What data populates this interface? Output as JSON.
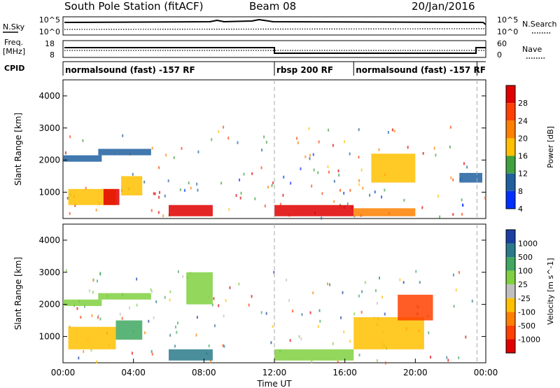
{
  "header": {
    "station_title": "South Pole Station (fitACF)",
    "beam": "Beam 08",
    "date": "20/Jan/2016"
  },
  "strips": {
    "nsky_label": "N.Sky",
    "nsky_ticks": [
      "10^5",
      "10^0"
    ],
    "nsearch_label": "N.Search",
    "nsearch_ticks": [
      "10^5",
      "10^0"
    ],
    "freq_label_1": "Freq.",
    "freq_label_2": "[MHz]",
    "freq_ticks": [
      "18",
      "8"
    ],
    "nave_label": "Nave",
    "nave_ticks": [
      "60",
      "0"
    ],
    "cpid_label": "CPID",
    "cpid_segments": [
      {
        "label": "normalsound (fast) -157 RF",
        "start_h": 0,
        "end_h": 12
      },
      {
        "label": "rbsp 200 RF",
        "start_h": 12,
        "end_h": 16.5
      },
      {
        "label": "normalsound (fast) -157 RF",
        "start_h": 16.5,
        "end_h": 23.5
      }
    ]
  },
  "chart_data": [
    {
      "type": "heatmap",
      "panel": "power",
      "ylabel": "Slant Range [km]",
      "ylim": [
        180,
        4500
      ],
      "xlim_hours": [
        0,
        24
      ],
      "yticks": [
        "1000",
        "2000",
        "3000",
        "4000"
      ],
      "colorbar_label": "Power [dB]",
      "colorbar_ticks": [
        "28",
        "24",
        "20",
        "16",
        "12",
        "8",
        "4"
      ],
      "colorbar_values": [
        28,
        24,
        20,
        16,
        12,
        8,
        4
      ],
      "colorbar_colors": [
        "#e00000",
        "#ff4000",
        "#ff8000",
        "#ffc000",
        "#40a040",
        "#2060a0",
        "#0030ff"
      ],
      "regions": [
        {
          "x": [
            0.0,
            2.2
          ],
          "y": [
            1950,
            2150
          ],
          "value": 8
        },
        {
          "x": [
            2.0,
            5.0
          ],
          "y": [
            2150,
            2350
          ],
          "value": 8
        },
        {
          "x": [
            0.3,
            3.0
          ],
          "y": [
            600,
            1100
          ],
          "value": 16
        },
        {
          "x": [
            2.3,
            3.2
          ],
          "y": [
            600,
            1100
          ],
          "value": 26
        },
        {
          "x": [
            3.3,
            4.5
          ],
          "y": [
            900,
            1500
          ],
          "value": 14
        },
        {
          "x": [
            6.0,
            8.5
          ],
          "y": [
            250,
            600
          ],
          "value": 26
        },
        {
          "x": [
            12.0,
            16.5
          ],
          "y": [
            250,
            600
          ],
          "value": 26
        },
        {
          "x": [
            16.5,
            20.0
          ],
          "y": [
            250,
            500
          ],
          "value": 20
        },
        {
          "x": [
            17.5,
            20.0
          ],
          "y": [
            1300,
            2200
          ],
          "value": 16
        },
        {
          "x": [
            22.5,
            23.8
          ],
          "y": [
            1300,
            1600
          ],
          "value": 8
        }
      ]
    },
    {
      "type": "heatmap",
      "panel": "velocity",
      "ylabel": "Slant Range [km]",
      "ylim": [
        180,
        4500
      ],
      "xlim_hours": [
        0,
        24
      ],
      "yticks": [
        "1000",
        "2000",
        "3000",
        "4000"
      ],
      "colorbar_label": "Velocity [m s^-1]",
      "colorbar_ticks": [
        "1000",
        "500",
        "100",
        "25",
        "-25",
        "-100",
        "-500",
        "-1000"
      ],
      "colorbar_values": [
        1000,
        500,
        100,
        25,
        -25,
        -100,
        -500,
        -1000
      ],
      "colorbar_colors": [
        "#1a3fa0",
        "#2a7a8a",
        "#40a860",
        "#80d040",
        "#c0c0c0",
        "#ffc000",
        "#ff8000",
        "#ff4000",
        "#e00000"
      ],
      "regions": [
        {
          "x": [
            0.0,
            2.2
          ],
          "y": [
            1950,
            2150
          ],
          "value": 0
        },
        {
          "x": [
            2.0,
            5.0
          ],
          "y": [
            2150,
            2350
          ],
          "value": 0
        },
        {
          "x": [
            0.3,
            3.0
          ],
          "y": [
            600,
            1300
          ],
          "value": -150
        },
        {
          "x": [
            3.0,
            4.5
          ],
          "y": [
            900,
            1500
          ],
          "value": 200
        },
        {
          "x": [
            6.0,
            8.5
          ],
          "y": [
            250,
            600
          ],
          "value": 300
        },
        {
          "x": [
            12.0,
            16.5
          ],
          "y": [
            250,
            600
          ],
          "value": 60
        },
        {
          "x": [
            16.5,
            20.5
          ],
          "y": [
            600,
            1600
          ],
          "value": -150
        },
        {
          "x": [
            19.0,
            21.0
          ],
          "y": [
            1500,
            2300
          ],
          "value": -800
        },
        {
          "x": [
            7.0,
            8.5
          ],
          "y": [
            2000,
            3000
          ],
          "value": 0
        }
      ]
    }
  ],
  "time_axis": {
    "xlabel": "Time UT",
    "ticks": [
      "00:00",
      "04:00",
      "08:00",
      "12:00",
      "16:00",
      "20:00",
      "00:00"
    ]
  }
}
